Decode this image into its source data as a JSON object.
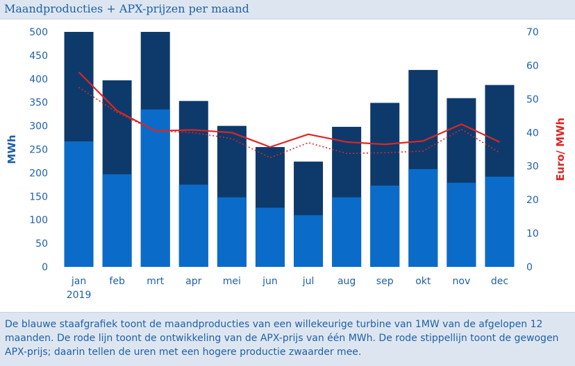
{
  "title": "Maandproducties + APX-prijzen per maand",
  "caption": "De blauwe staafgrafiek toont de maandproducties van een willekeurige turbine van 1MW van de afgelopen 12 maanden. De rode lijn toont de ontwikkeling van de APX-prijs van één MWh. De rode stippellijn toont de gewogen APX-prijs; daarin tellen de uren met een hogere productie zwaarder mee.",
  "colors": {
    "bar_dark": "#0d3a6b",
    "bar_light": "#0a6cc8",
    "line": "#e02424",
    "axis_text": "#1f5fa8",
    "y2_label": "#e02424",
    "grid": "#dfe5ec"
  },
  "chart_data": {
    "type": "bar",
    "categories": [
      "jan",
      "feb",
      "mrt",
      "apr",
      "mei",
      "jun",
      "jul",
      "aug",
      "sep",
      "okt",
      "nov",
      "dec"
    ],
    "year_label": "2019",
    "ylabel": "MWh",
    "y2label": "Euro/ MWh",
    "ylim": [
      0,
      500
    ],
    "y2lim": [
      0,
      70
    ],
    "yticks": [
      0,
      50,
      100,
      150,
      200,
      250,
      300,
      350,
      400,
      450,
      500
    ],
    "y2ticks": [
      0,
      10,
      20,
      30,
      40,
      50,
      60,
      70
    ],
    "series": [
      {
        "stack": "lower",
        "values": [
          267,
          197,
          335,
          175,
          148,
          126,
          110,
          148,
          173,
          208,
          179,
          192
        ]
      },
      {
        "stack": "total",
        "values": [
          500,
          397,
          500,
          353,
          300,
          255,
          224,
          298,
          349,
          419,
          359,
          387
        ]
      }
    ],
    "lines": [
      {
        "style": "solid",
        "axis": "y2",
        "values": [
          58,
          46.5,
          40.5,
          40.8,
          40,
          35.7,
          39.5,
          37.2,
          36.5,
          37.5,
          42.5,
          37.2
        ]
      },
      {
        "style": "dotted",
        "axis": "y2",
        "values": [
          53.5,
          46,
          40.5,
          40,
          38.2,
          32.5,
          37,
          33.8,
          34,
          34.5,
          41,
          34
        ]
      }
    ],
    "grid": false,
    "legend": "none"
  }
}
